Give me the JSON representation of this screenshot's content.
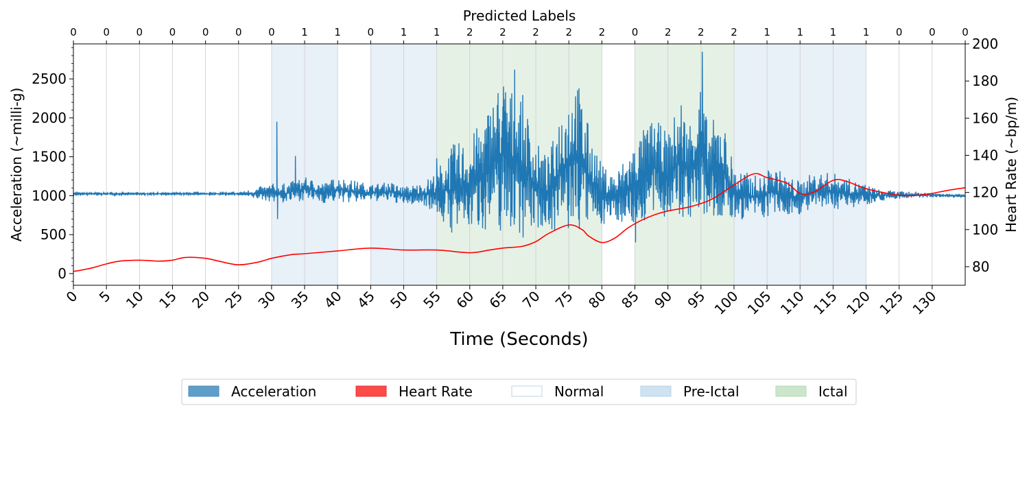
{
  "chart_data": {
    "type": "line",
    "top_axis_title": "Predicted Labels",
    "xlabel": "Time (Seconds)",
    "ylabel_left": "Acceleration (~milli-g)",
    "ylabel_right": "Heart Rate (~bp/m)",
    "xlim": [
      0,
      135
    ],
    "ylim_left": [
      -150,
      2950
    ],
    "ylim_right": [
      70,
      200
    ],
    "x_ticks": [
      0,
      5,
      10,
      15,
      20,
      25,
      30,
      35,
      40,
      45,
      50,
      55,
      60,
      65,
      70,
      75,
      80,
      85,
      90,
      95,
      100,
      105,
      110,
      115,
      120,
      125,
      130
    ],
    "x_tick_labels": [
      "0",
      "5",
      "10",
      "15",
      "20",
      "25",
      "30",
      "35",
      "40",
      "45",
      "50",
      "55",
      "60",
      "65",
      "70",
      "75",
      "80",
      "85",
      "90",
      "95",
      "100",
      "105",
      "110",
      "115",
      "120",
      "125",
      "130"
    ],
    "y_left_ticks": [
      0,
      500,
      1000,
      1500,
      2000,
      2500
    ],
    "y_left_tick_labels": [
      "0",
      "500",
      "1000",
      "1500",
      "2000",
      "2500"
    ],
    "y_right_ticks": [
      80,
      100,
      120,
      140,
      160,
      180,
      200
    ],
    "y_right_tick_labels": [
      "80",
      "100",
      "120",
      "140",
      "160",
      "180",
      "200"
    ],
    "top_ticks": [
      0,
      5,
      10,
      15,
      20,
      25,
      30,
      35,
      40,
      45,
      50,
      55,
      60,
      65,
      70,
      75,
      80,
      85,
      90,
      95,
      100,
      105,
      110,
      115,
      120,
      125,
      130,
      135
    ],
    "predicted_labels": [
      "0",
      "0",
      "0",
      "0",
      "0",
      "0",
      "0",
      "1",
      "1",
      "0",
      "1",
      "1",
      "2",
      "2",
      "2",
      "2",
      "2",
      "0",
      "2",
      "2",
      "2",
      "1",
      "1",
      "1",
      "1",
      "0",
      "0",
      "0"
    ],
    "regions": [
      {
        "label": "Pre-Ictal",
        "start": 30,
        "end": 40
      },
      {
        "label": "Pre-Ictal",
        "start": 45,
        "end": 55
      },
      {
        "label": "Ictal",
        "start": 55,
        "end": 80
      },
      {
        "label": "Ictal",
        "start": 85,
        "end": 100
      },
      {
        "label": "Pre-Ictal",
        "start": 100,
        "end": 120
      }
    ],
    "acceleration_envelope": {
      "x": [
        0,
        25,
        27,
        30,
        32,
        35,
        38,
        40,
        42,
        45,
        48,
        50,
        53,
        55,
        57,
        60,
        62,
        64,
        65,
        66,
        68,
        70,
        72,
        73,
        74,
        75,
        76,
        77,
        78,
        80,
        82,
        85,
        87,
        88,
        90,
        92,
        93,
        95,
        96,
        98,
        100,
        102,
        104,
        106,
        108,
        110,
        112,
        115,
        118,
        120,
        122,
        125,
        128,
        130,
        135
      ],
      "max": [
        1040,
        1040,
        1090,
        1160,
        1160,
        1240,
        1170,
        1250,
        1210,
        1150,
        1180,
        1120,
        1170,
        1330,
        1650,
        1750,
        2000,
        2400,
        2600,
        2400,
        2300,
        1700,
        1500,
        1900,
        2300,
        2400,
        2600,
        2300,
        1900,
        1400,
        1300,
        1700,
        1950,
        2000,
        1800,
        2300,
        1900,
        2600,
        1900,
        2100,
        1400,
        1300,
        1250,
        1400,
        1250,
        1200,
        1300,
        1300,
        1200,
        1150,
        1080,
        1060,
        1050,
        1040,
        1010
      ],
      "min": [
        1010,
        1010,
        960,
        920,
        900,
        940,
        900,
        920,
        900,
        930,
        920,
        880,
        880,
        760,
        500,
        550,
        560,
        520,
        480,
        560,
        450,
        560,
        580,
        520,
        450,
        480,
        500,
        520,
        600,
        620,
        680,
        600,
        660,
        700,
        720,
        640,
        700,
        620,
        680,
        650,
        660,
        700,
        700,
        720,
        740,
        760,
        800,
        820,
        850,
        880,
        930,
        960,
        970,
        980,
        980
      ],
      "spikes": [
        {
          "x": 30.8,
          "y": 1950
        },
        {
          "x": 30.9,
          "y": 700
        },
        {
          "x": 33.6,
          "y": 1510
        },
        {
          "x": 55.0,
          "y": 1480
        },
        {
          "x": 95.2,
          "y": 2850
        },
        {
          "x": 85.1,
          "y": 400
        },
        {
          "x": 66.8,
          "y": 2620
        }
      ]
    },
    "heart_rate": {
      "x": [
        0,
        1,
        3,
        5,
        7,
        10,
        13,
        15,
        17,
        20,
        22,
        25,
        28,
        30,
        33,
        35,
        40,
        45,
        50,
        55,
        60,
        63,
        65,
        68,
        70,
        72,
        75,
        77,
        78,
        80,
        82,
        84,
        86,
        88,
        90,
        93,
        95,
        97,
        100,
        103,
        105,
        108,
        110,
        112,
        115,
        117,
        120,
        125,
        128,
        130,
        133,
        135
      ],
      "y": [
        77.5,
        78,
        79.5,
        81.5,
        83,
        83.5,
        83,
        83.5,
        85,
        84.5,
        83,
        81,
        82.5,
        84.5,
        86.5,
        87,
        88.5,
        90,
        89,
        89,
        87.5,
        89,
        90,
        91,
        93.5,
        98,
        102.5,
        100,
        96.5,
        93,
        95.5,
        101,
        105,
        108,
        110,
        112,
        114,
        117,
        124,
        130,
        128,
        125,
        119.5,
        120,
        126.5,
        126,
        122,
        118.5,
        118.5,
        119.5,
        121.5,
        122.5
      ]
    },
    "series": [
      {
        "name": "Acceleration",
        "color": "#1f77b4"
      },
      {
        "name": "Heart Rate",
        "color": "#ff0000"
      }
    ],
    "legend": [
      {
        "label": "Acceleration",
        "fill": "#5f9ec9",
        "stroke": "#4a8ec0"
      },
      {
        "label": "Heart Rate",
        "fill": "#ff4a4a",
        "stroke": "#e03030"
      },
      {
        "label": "Normal",
        "fill": "#ffffff",
        "stroke": "#b8d3e8"
      },
      {
        "label": "Pre-Ictal",
        "fill": "#cfe2f0",
        "stroke": "#b8d3e8"
      },
      {
        "label": "Ictal",
        "fill": "#cce6cc",
        "stroke": "#b3d9b3"
      }
    ],
    "legend_position": "bottom-center",
    "grid": "x-vertical",
    "colors": {
      "pre_ictal_region": "#e8f0f8",
      "ictal_region": "#e6f1e6",
      "grid": "#cccccc"
    }
  }
}
